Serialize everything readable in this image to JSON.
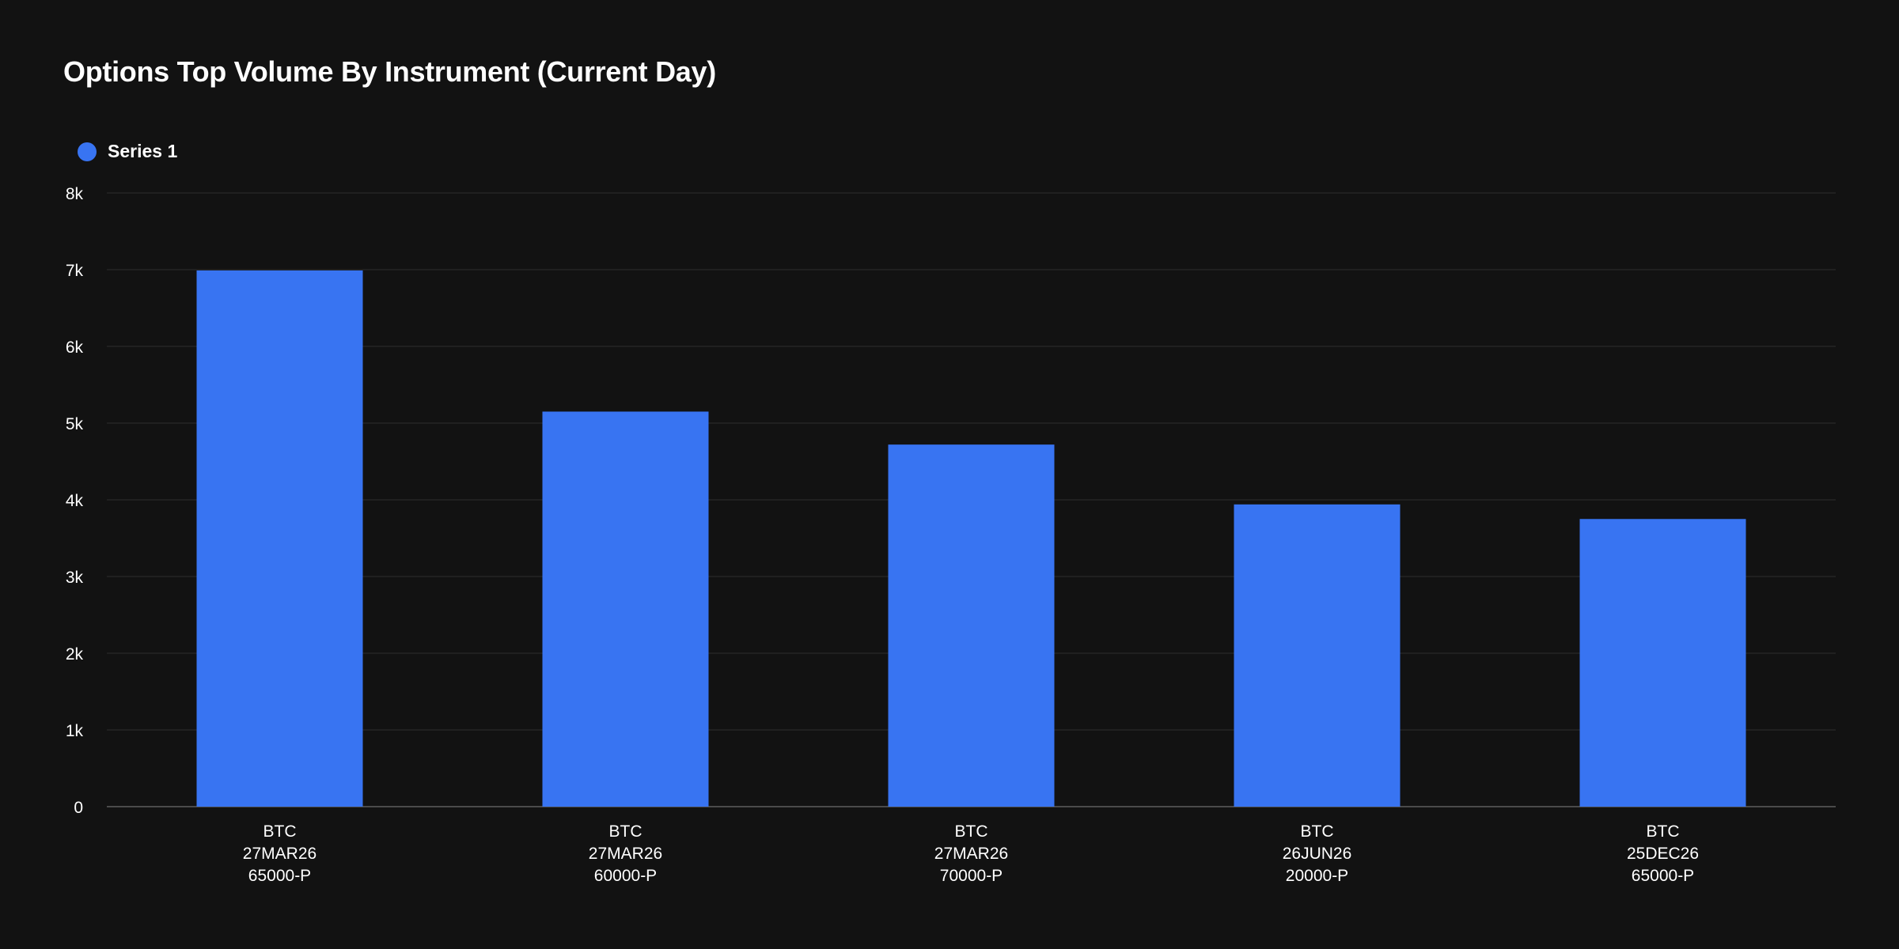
{
  "colors": {
    "background": "#121212",
    "bar": "#3874F2",
    "grid": "#242424",
    "axis": "#4a4a4a",
    "text": "#ffffff"
  },
  "chart_data": {
    "type": "bar",
    "title": "Options Top Volume By Instrument (Current Day)",
    "xlabel": "",
    "ylabel": "",
    "ylim": [
      0,
      8000
    ],
    "y_ticks": [
      0,
      1000,
      2000,
      3000,
      4000,
      5000,
      6000,
      7000,
      8000
    ],
    "y_tick_labels": [
      "0",
      "1k",
      "2k",
      "3k",
      "4k",
      "5k",
      "6k",
      "7k",
      "8k"
    ],
    "grid": true,
    "legend": "top-left",
    "categories": [
      [
        "BTC",
        "27MAR26",
        "65000-P"
      ],
      [
        "BTC",
        "27MAR26",
        "60000-P"
      ],
      [
        "BTC",
        "27MAR26",
        "70000-P"
      ],
      [
        "BTC",
        "26JUN26",
        "20000-P"
      ],
      [
        "BTC",
        "25DEC26",
        "65000-P"
      ]
    ],
    "series": [
      {
        "name": "Series 1",
        "color": "#3874F2",
        "values": [
          6990,
          5150,
          4720,
          3940,
          3750
        ]
      }
    ]
  }
}
